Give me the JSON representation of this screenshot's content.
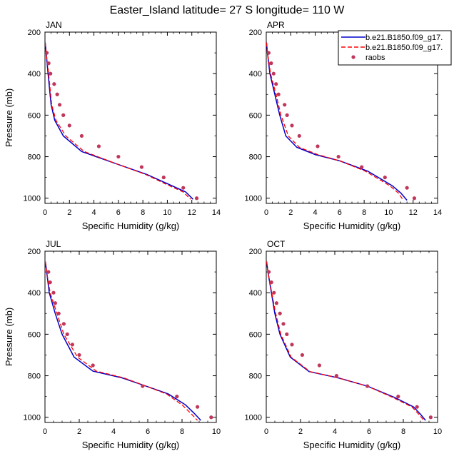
{
  "figure": {
    "title": "Easter_Island  latitude= 27 S longitude= 110 W"
  },
  "legend": {
    "entries": [
      {
        "label": "b.e21.B1850.f09_g17.",
        "color": "#0000cc",
        "style": "solid"
      },
      {
        "label": "b.e21.B1850.f09_g17.",
        "color": "#ff0000",
        "style": "dashed"
      },
      {
        "label": "raobs",
        "color": "#c0375a",
        "style": "marker"
      }
    ],
    "placement": "top-right of APR panel"
  },
  "chart_data": [
    {
      "type": "line",
      "panel": "JAN",
      "title": "JAN",
      "xlabel": "Specific Humidity (g/kg)",
      "ylabel": "Pressure (mb)",
      "xlim": [
        0,
        14
      ],
      "ylim": [
        1025,
        200
      ],
      "xticks": [
        0,
        2,
        4,
        6,
        8,
        10,
        12,
        14
      ],
      "yticks": [
        200,
        400,
        600,
        800,
        1000
      ],
      "series": [
        {
          "name": "b.e21.B1850.f09_g17.",
          "color": "#0000cc",
          "dashed": false,
          "points": [
            [
              0.02,
              250
            ],
            [
              0.1,
              300
            ],
            [
              0.25,
              400
            ],
            [
              0.5,
              550
            ],
            [
              0.8,
              625
            ],
            [
              1.5,
              700
            ],
            [
              3.0,
              775
            ],
            [
              6.0,
              838
            ],
            [
              8.3,
              885
            ],
            [
              10.3,
              938
            ],
            [
              11.5,
              970
            ],
            [
              12.1,
              1005
            ]
          ]
        },
        {
          "name": "b.e21.B1850.f09_g17.",
          "color": "#ff0000",
          "dashed": true,
          "points": [
            [
              0.02,
              250
            ],
            [
              0.1,
              300
            ],
            [
              0.3,
              400
            ],
            [
              0.55,
              550
            ],
            [
              0.9,
              625
            ],
            [
              1.7,
              700
            ],
            [
              3.2,
              775
            ],
            [
              6.0,
              838
            ],
            [
              8.2,
              885
            ],
            [
              10.1,
              938
            ],
            [
              11.3,
              970
            ],
            [
              11.9,
              1005
            ]
          ]
        }
      ],
      "observations": {
        "name": "raobs",
        "color": "#c0375a",
        "points": [
          [
            0.15,
            300
          ],
          [
            0.3,
            350
          ],
          [
            0.45,
            400
          ],
          [
            0.75,
            450
          ],
          [
            1.0,
            500
          ],
          [
            1.2,
            550
          ],
          [
            1.5,
            600
          ],
          [
            2.0,
            650
          ],
          [
            3.0,
            700
          ],
          [
            4.4,
            750
          ],
          [
            6.0,
            800
          ],
          [
            7.9,
            850
          ],
          [
            9.7,
            900
          ],
          [
            11.3,
            950
          ],
          [
            12.4,
            1000
          ]
        ]
      }
    },
    {
      "type": "line",
      "panel": "APR",
      "title": "APR",
      "xlabel": "Specific Humidity (g/kg)",
      "ylabel": "",
      "xlim": [
        0,
        14
      ],
      "ylim": [
        1025,
        200
      ],
      "xticks": [
        0,
        2,
        4,
        6,
        8,
        10,
        12,
        14
      ],
      "yticks": [
        200,
        400,
        600,
        800,
        1000
      ],
      "series": [
        {
          "name": "b.e21.B1850.f09_g17.",
          "color": "#0000cc",
          "dashed": false,
          "points": [
            [
              0.02,
              250
            ],
            [
              0.1,
              300
            ],
            [
              0.3,
              400
            ],
            [
              0.7,
              500
            ],
            [
              1.1,
              600
            ],
            [
              1.6,
              700
            ],
            [
              2.5,
              755
            ],
            [
              4.0,
              790
            ],
            [
              6.0,
              820
            ],
            [
              8.3,
              870
            ],
            [
              10.3,
              940
            ],
            [
              11.0,
              975
            ],
            [
              11.5,
              1010
            ]
          ]
        },
        {
          "name": "b.e21.B1850.f09_g17.",
          "color": "#ff0000",
          "dashed": true,
          "points": [
            [
              0.02,
              250
            ],
            [
              0.1,
              300
            ],
            [
              0.35,
              400
            ],
            [
              0.8,
              500
            ],
            [
              1.2,
              600
            ],
            [
              1.8,
              700
            ],
            [
              2.7,
              755
            ],
            [
              4.2,
              790
            ],
            [
              6.0,
              820
            ],
            [
              8.1,
              870
            ],
            [
              10.1,
              940
            ],
            [
              10.8,
              975
            ],
            [
              11.2,
              1010
            ]
          ]
        }
      ],
      "observations": {
        "name": "raobs",
        "color": "#c0375a",
        "points": [
          [
            0.2,
            300
          ],
          [
            0.4,
            350
          ],
          [
            0.6,
            400
          ],
          [
            0.8,
            450
          ],
          [
            1.0,
            500
          ],
          [
            1.5,
            550
          ],
          [
            1.7,
            600
          ],
          [
            2.1,
            650
          ],
          [
            2.7,
            700
          ],
          [
            4.2,
            750
          ],
          [
            5.9,
            800
          ],
          [
            7.8,
            850
          ],
          [
            9.7,
            900
          ],
          [
            11.5,
            950
          ],
          [
            12.1,
            1000
          ]
        ]
      }
    },
    {
      "type": "line",
      "panel": "JUL",
      "title": "JUL",
      "xlabel": "Specific Humidity (g/kg)",
      "ylabel": "Pressure (mb)",
      "xlim": [
        0,
        10
      ],
      "ylim": [
        1025,
        200
      ],
      "xticks": [
        0,
        2,
        4,
        6,
        8,
        10
      ],
      "yticks": [
        200,
        400,
        600,
        800,
        1000
      ],
      "series": [
        {
          "name": "b.e21.B1850.f09_g17.",
          "color": "#0000cc",
          "dashed": false,
          "points": [
            [
              0.02,
              250
            ],
            [
              0.1,
              300
            ],
            [
              0.25,
              400
            ],
            [
              0.6,
              500
            ],
            [
              1.0,
              600
            ],
            [
              1.7,
              710
            ],
            [
              2.8,
              778
            ],
            [
              4.5,
              810
            ],
            [
              5.9,
              850
            ],
            [
              7.2,
              888
            ],
            [
              8.2,
              940
            ],
            [
              8.7,
              980
            ],
            [
              9.1,
              1015
            ]
          ]
        },
        {
          "name": "b.e21.B1850.f09_g17.",
          "color": "#ff0000",
          "dashed": true,
          "points": [
            [
              0.02,
              250
            ],
            [
              0.1,
              300
            ],
            [
              0.3,
              400
            ],
            [
              0.7,
              500
            ],
            [
              1.1,
              600
            ],
            [
              1.9,
              710
            ],
            [
              3.0,
              778
            ],
            [
              4.6,
              810
            ],
            [
              5.9,
              850
            ],
            [
              7.1,
              888
            ],
            [
              8.0,
              940
            ],
            [
              8.5,
              980
            ],
            [
              8.9,
              1015
            ]
          ]
        }
      ],
      "observations": {
        "name": "raobs",
        "color": "#c0375a",
        "points": [
          [
            0.2,
            300
          ],
          [
            0.3,
            350
          ],
          [
            0.5,
            400
          ],
          [
            0.6,
            450
          ],
          [
            0.8,
            500
          ],
          [
            1.1,
            550
          ],
          [
            1.3,
            600
          ],
          [
            1.6,
            650
          ],
          [
            2.0,
            700
          ],
          [
            2.8,
            750
          ],
          [
            5.7,
            850
          ],
          [
            7.7,
            900
          ],
          [
            8.9,
            950
          ],
          [
            9.7,
            1000
          ]
        ]
      }
    },
    {
      "type": "line",
      "panel": "OCT",
      "title": "OCT",
      "xlabel": "Specific Humidity (g/kg)",
      "ylabel": "",
      "xlim": [
        0,
        10
      ],
      "ylim": [
        1025,
        200
      ],
      "xticks": [
        0,
        2,
        4,
        6,
        8,
        10
      ],
      "yticks": [
        200,
        400,
        600,
        800,
        1000
      ],
      "series": [
        {
          "name": "b.e21.B1850.f09_g17.",
          "color": "#0000cc",
          "dashed": false,
          "points": [
            [
              0.02,
              250
            ],
            [
              0.1,
              300
            ],
            [
              0.3,
              400
            ],
            [
              0.5,
              500
            ],
            [
              0.8,
              600
            ],
            [
              1.4,
              710
            ],
            [
              2.5,
              780
            ],
            [
              4.2,
              810
            ],
            [
              5.9,
              850
            ],
            [
              7.5,
              905
            ],
            [
              8.6,
              950
            ],
            [
              9.0,
              985
            ],
            [
              9.3,
              1015
            ]
          ]
        },
        {
          "name": "b.e21.B1850.f09_g17.",
          "color": "#ff0000",
          "dashed": true,
          "points": [
            [
              0.02,
              250
            ],
            [
              0.1,
              300
            ],
            [
              0.32,
              400
            ],
            [
              0.55,
              500
            ],
            [
              0.85,
              600
            ],
            [
              1.45,
              710
            ],
            [
              2.55,
              780
            ],
            [
              4.2,
              810
            ],
            [
              5.9,
              850
            ],
            [
              7.4,
              905
            ],
            [
              8.5,
              950
            ],
            [
              8.9,
              985
            ],
            [
              9.2,
              1015
            ]
          ]
        }
      ],
      "observations": {
        "name": "raobs",
        "color": "#c0375a",
        "points": [
          [
            0.15,
            300
          ],
          [
            0.3,
            350
          ],
          [
            0.45,
            400
          ],
          [
            0.6,
            450
          ],
          [
            0.8,
            500
          ],
          [
            1.0,
            550
          ],
          [
            1.2,
            600
          ],
          [
            1.5,
            650
          ],
          [
            2.1,
            700
          ],
          [
            3.1,
            750
          ],
          [
            4.1,
            800
          ],
          [
            5.9,
            850
          ],
          [
            7.7,
            900
          ],
          [
            8.8,
            950
          ],
          [
            9.6,
            1000
          ]
        ]
      }
    }
  ]
}
